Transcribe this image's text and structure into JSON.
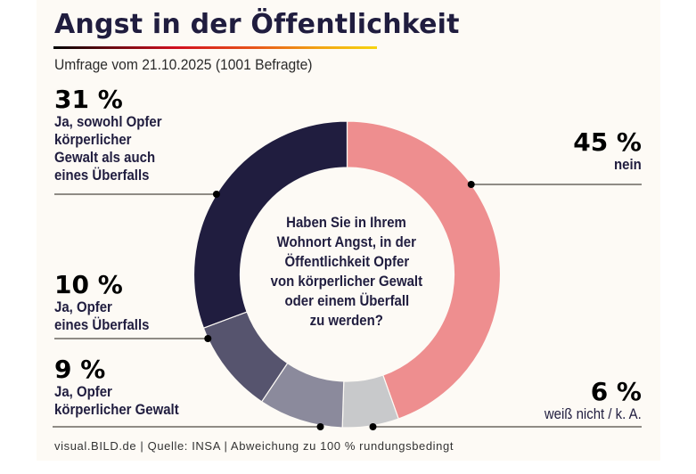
{
  "header": {
    "title": "Angst in der Öffentlichkeit",
    "subtitle": "Umfrage vom 21.10.2025 (1001 Befragte)"
  },
  "footer": {
    "text": "visual.BILD.de | Quelle: INSA | Abweichung zu 100 % rundungsbedingt"
  },
  "chart_data": {
    "type": "pie",
    "variant": "donut",
    "title": "Angst in der Öffentlichkeit",
    "subtitle": "Umfrage vom 21.10.2025 (1001 Befragte)",
    "center_text": [
      "Haben Sie in Ihrem",
      "Wohnort Angst, in der",
      "Öffentlichkeit Opfer",
      "von körperlicher Gewalt",
      "oder einem Überfall",
      "zu werden?"
    ],
    "start": "top",
    "direction": "clockwise",
    "total_note": "sum 101 % (rounding)",
    "slices": [
      {
        "key": "nein",
        "value": 45,
        "value_label": "45 %",
        "label": [
          "nein"
        ],
        "color": "#EE8E8F",
        "side": "right"
      },
      {
        "key": "weiss_nicht",
        "value": 6,
        "value_label": "6 %",
        "label": [
          "weiß nicht / k. A."
        ],
        "color": "#C8C9CB",
        "side": "right"
      },
      {
        "key": "opfer_gewalt",
        "value": 9,
        "value_label": "9 %",
        "label": [
          "Ja, Opfer",
          "körperlicher Gewalt"
        ],
        "color": "#8B8A9C",
        "side": "left"
      },
      {
        "key": "opfer_ueberfall",
        "value": 10,
        "value_label": "10 %",
        "label": [
          "Ja, Opfer",
          "eines Überfalls"
        ],
        "color": "#56546E",
        "side": "left"
      },
      {
        "key": "beides",
        "value": 31,
        "value_label": "31 %",
        "label": [
          "Ja, sowohl Opfer",
          "körperlicher",
          "Gewalt als auch",
          "eines Überfalls"
        ],
        "color": "#201D3F",
        "side": "left"
      }
    ]
  }
}
